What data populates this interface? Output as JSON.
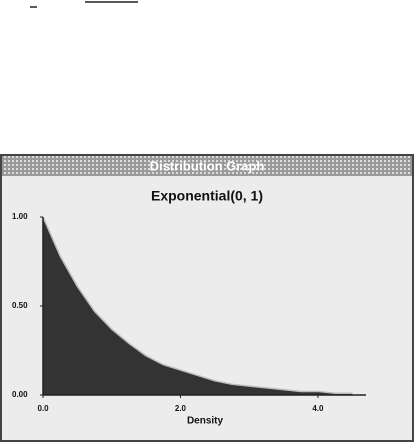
{
  "window_title": "Distribution Graph",
  "chart_data": {
    "type": "area",
    "title": "Exponential(0, 1)",
    "x_label": "Density",
    "x": [
      0,
      0.25,
      0.5,
      0.75,
      1,
      1.25,
      1.5,
      1.75,
      2,
      2.25,
      2.5,
      2.75,
      3,
      3.25,
      3.5,
      3.75,
      4,
      4.25,
      4.5
    ],
    "values": [
      1,
      0.78,
      0.61,
      0.47,
      0.37,
      0.29,
      0.22,
      0.17,
      0.14,
      0.11,
      0.08,
      0.06,
      0.05,
      0.04,
      0.03,
      0.02,
      0.02,
      0.01,
      0.01
    ],
    "color": "#333333",
    "xlim": [
      0,
      4.7
    ],
    "ylim": [
      0,
      1
    ],
    "xticks": [
      {
        "value": 0,
        "label": "0.0"
      },
      {
        "value": 2,
        "label": "2.0"
      },
      {
        "value": 4,
        "label": "4.0"
      }
    ],
    "yticks": [
      {
        "value": 0,
        "label": "0.00"
      },
      {
        "value": 0.5,
        "label": "0.50"
      },
      {
        "value": 1,
        "label": "1.00"
      }
    ]
  }
}
